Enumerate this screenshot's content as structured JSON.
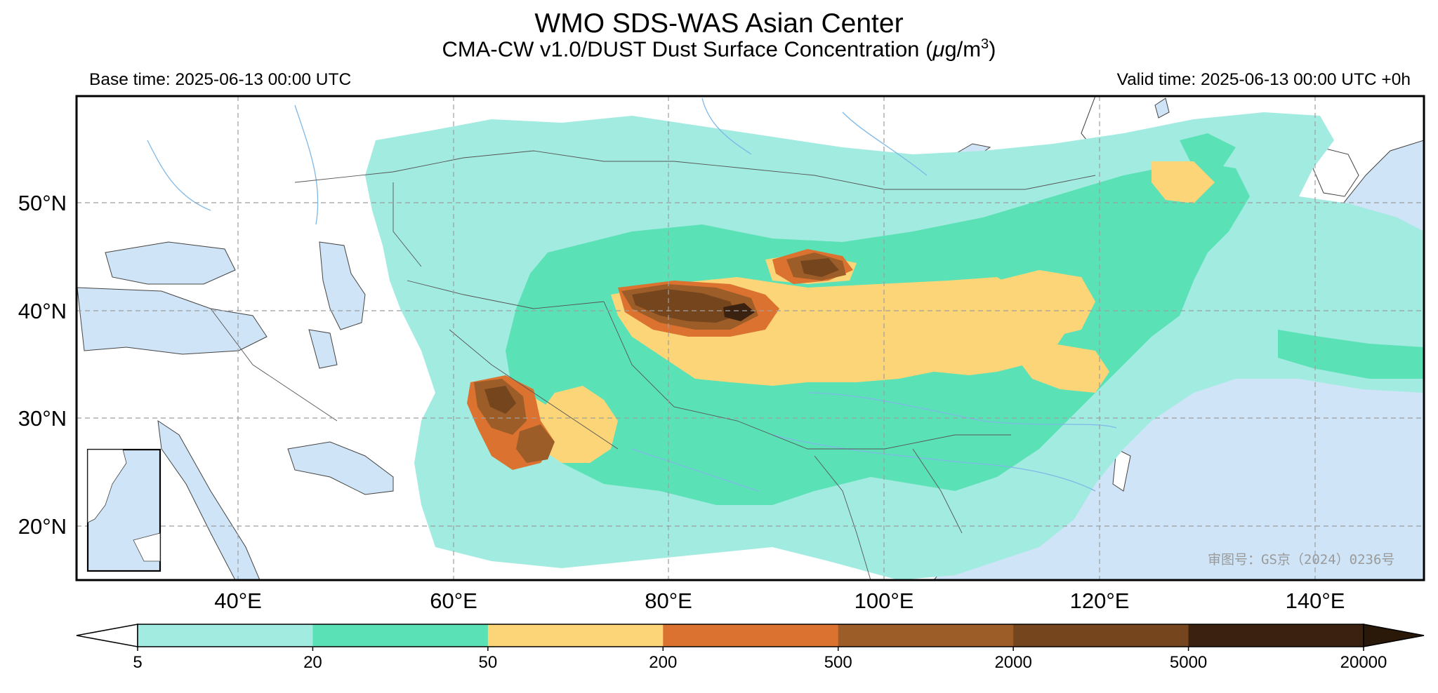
{
  "header": {
    "title": "WMO SDS-WAS Asian Center",
    "subtitle_main": "CMA-CW v1.0/DUST Dust Surface Concentration (",
    "subtitle_mu": "μ",
    "subtitle_unit": "g/m",
    "subtitle_exp": "3",
    "subtitle_close": ")",
    "base_time": "Base time: 2025-06-13 00:00 UTC",
    "valid_time": "Valid time: 2025-06-13 00:00 UTC +0h"
  },
  "map": {
    "lon_labels": [
      "40°E",
      "60°E",
      "80°E",
      "100°E",
      "120°E",
      "140°E"
    ],
    "lat_labels": [
      "50°N",
      "40°N",
      "30°N",
      "20°N"
    ],
    "watermark": "审图号：GS京（2024）0236号",
    "colors": {
      "ocean": "#cfe4f6",
      "land": "#ffffff",
      "river": "#7fb8e6"
    }
  },
  "colorbar": {
    "ticks": [
      "5",
      "20",
      "50",
      "200",
      "500",
      "2000",
      "5000",
      "20000"
    ],
    "colors": [
      "#a2ebe1",
      "#5ae2b6",
      "#fbd578",
      "#db722f",
      "#9d5d28",
      "#75461d",
      "#3b2210"
    ],
    "over_color": "#2a1909",
    "under_color": "#ffffff"
  }
}
